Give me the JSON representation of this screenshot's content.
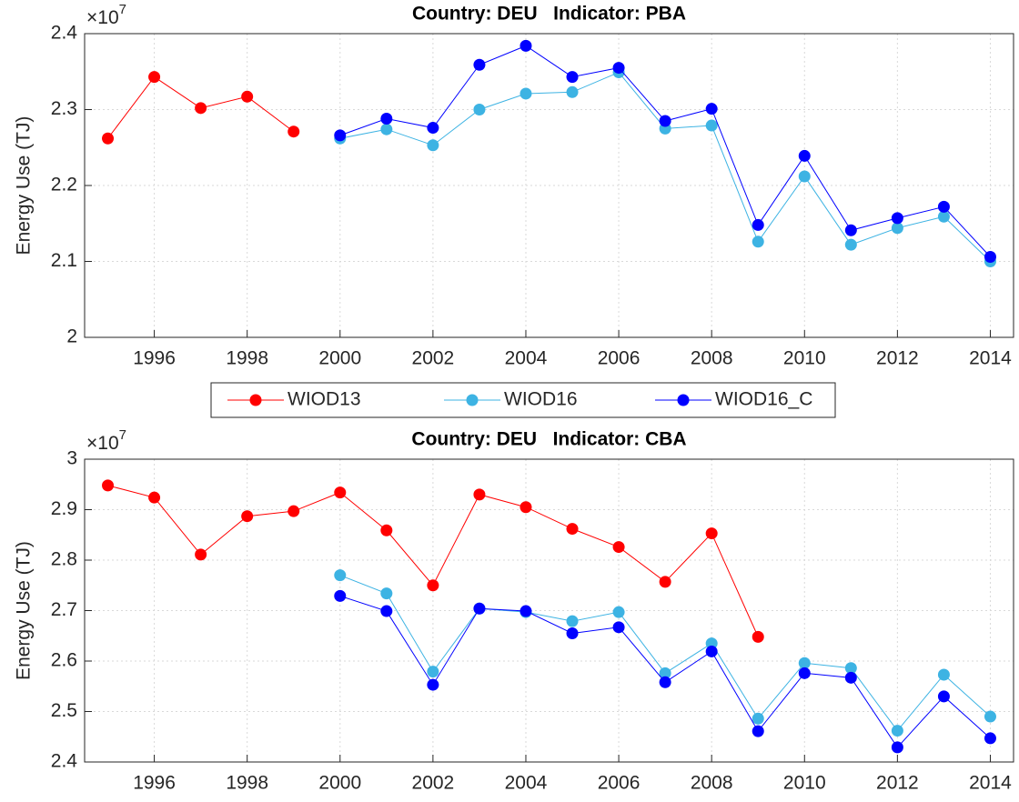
{
  "chart_data": [
    {
      "type": "line",
      "title": "Country: DEU   Indicator: PBA",
      "ylabel": "Energy Use (TJ)",
      "y_multiplier_base": "×10",
      "y_multiplier_exponent": "7",
      "x": [
        1995,
        1996,
        1997,
        1998,
        1999,
        2000,
        2001,
        2002,
        2003,
        2004,
        2005,
        2006,
        2007,
        2008,
        2009,
        2010,
        2011,
        2012,
        2013,
        2014
      ],
      "xlim": [
        1994.5,
        2014.5
      ],
      "xticks": [
        1996,
        1998,
        2000,
        2002,
        2004,
        2006,
        2008,
        2010,
        2012,
        2014
      ],
      "ylim": [
        2,
        2.4
      ],
      "yticks": [
        2,
        2.1,
        2.2,
        2.3,
        2.4
      ],
      "grid": true,
      "legend": "below",
      "series": [
        {
          "name": "WIOD13",
          "color": "#ff0000",
          "values": [
            2.262,
            2.343,
            2.302,
            2.317,
            2.271,
            null,
            null,
            null,
            null,
            null,
            null,
            null,
            null,
            null,
            null,
            null,
            null,
            null,
            null,
            null
          ]
        },
        {
          "name": "WIOD16",
          "color": "#3db3e3",
          "values": [
            null,
            null,
            null,
            null,
            null,
            2.262,
            2.274,
            2.253,
            2.3,
            2.321,
            2.323,
            2.349,
            2.275,
            2.279,
            2.126,
            2.212,
            2.122,
            2.144,
            2.159,
            2.1
          ]
        },
        {
          "name": "WIOD16_C",
          "color": "#0000ff",
          "values": [
            null,
            null,
            null,
            null,
            null,
            2.266,
            2.288,
            2.276,
            2.359,
            2.384,
            2.343,
            2.355,
            2.285,
            2.301,
            2.148,
            2.239,
            2.141,
            2.157,
            2.172,
            2.106
          ]
        }
      ]
    },
    {
      "type": "line",
      "title": "Country: DEU   Indicator: CBA",
      "ylabel": "Energy Use (TJ)",
      "y_multiplier_base": "×10",
      "y_multiplier_exponent": "7",
      "x": [
        1995,
        1996,
        1997,
        1998,
        1999,
        2000,
        2001,
        2002,
        2003,
        2004,
        2005,
        2006,
        2007,
        2008,
        2009,
        2010,
        2011,
        2012,
        2013,
        2014
      ],
      "xlim": [
        1994.5,
        2014.5
      ],
      "xticks": [
        1996,
        1998,
        2000,
        2002,
        2004,
        2006,
        2008,
        2010,
        2012,
        2014
      ],
      "ylim": [
        2.4,
        3
      ],
      "yticks": [
        2.4,
        2.5,
        2.6,
        2.7,
        2.8,
        2.9,
        3
      ],
      "grid": true,
      "series": [
        {
          "color": "#ff0000",
          "values": [
            2.948,
            2.924,
            2.811,
            2.887,
            2.897,
            2.934,
            2.859,
            2.75,
            2.93,
            2.905,
            2.862,
            2.826,
            2.757,
            2.853,
            2.648,
            null,
            null,
            null,
            null,
            null
          ]
        },
        {
          "color": "#3db3e3",
          "values": [
            null,
            null,
            null,
            null,
            null,
            2.77,
            2.734,
            2.579,
            2.704,
            2.697,
            2.679,
            2.697,
            2.576,
            2.635,
            2.486,
            2.596,
            2.586,
            2.462,
            2.573,
            2.49
          ]
        },
        {
          "color": "#0000ff",
          "values": [
            null,
            null,
            null,
            null,
            null,
            2.729,
            2.699,
            2.553,
            2.704,
            2.699,
            2.655,
            2.667,
            2.558,
            2.619,
            2.461,
            2.576,
            2.567,
            2.429,
            2.53,
            2.447
          ]
        }
      ]
    }
  ]
}
